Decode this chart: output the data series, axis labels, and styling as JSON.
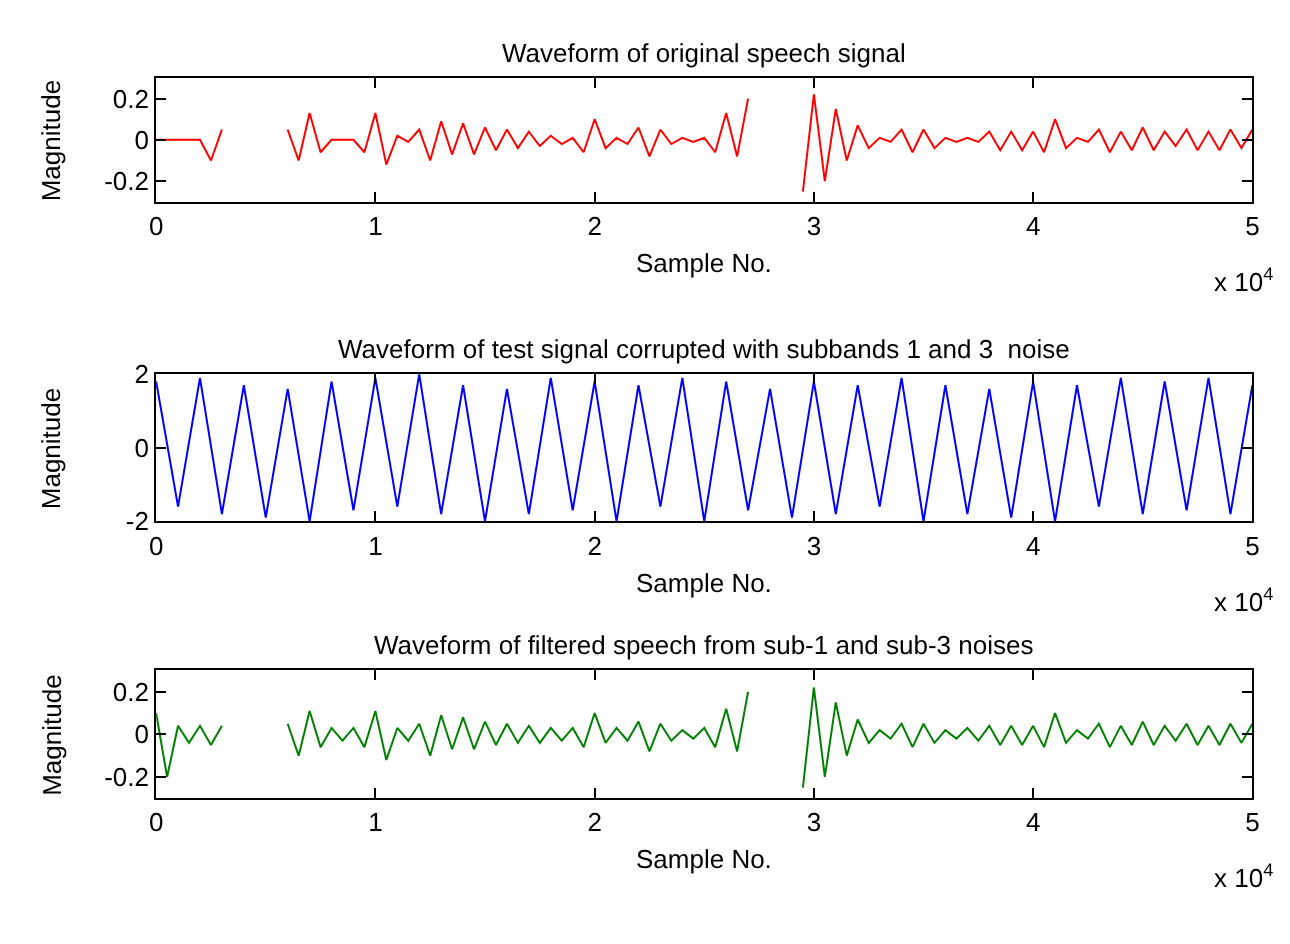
{
  "chart_data": [
    {
      "type": "line",
      "title": "Waveform of original speech signal",
      "xlabel": "Sample No.",
      "ylabel": "Magnitude",
      "annotations": [
        "x 10$^{4}$"
      ],
      "x": [
        0,
        0.05,
        0.1,
        0.15,
        0.2,
        0.25,
        0.3,
        0.35,
        0.4,
        0.45,
        0.5,
        0.55,
        0.6,
        0.65,
        0.7,
        0.75,
        0.8,
        0.85,
        0.9,
        0.95,
        1,
        1.05,
        1.1,
        1.15,
        1.2,
        1.25,
        1.3,
        1.35,
        1.4,
        1.45,
        1.5,
        1.55,
        1.6,
        1.65,
        1.7,
        1.75,
        1.8,
        1.85,
        1.9,
        1.95,
        2,
        2.05,
        2.1,
        2.15,
        2.2,
        2.25,
        2.3,
        2.35,
        2.4,
        2.45,
        2.5,
        2.55,
        2.6,
        2.65,
        2.7,
        2.75,
        2.8,
        2.85,
        2.9,
        2.95,
        3,
        3.05,
        3.1,
        3.15,
        3.2,
        3.25,
        3.3,
        3.35,
        3.4,
        3.45,
        3.5,
        3.55,
        3.6,
        3.65,
        3.7,
        3.75,
        3.8,
        3.85,
        3.9,
        3.95,
        4,
        4.05,
        4.1,
        4.15,
        4.2,
        4.25,
        4.3,
        4.35,
        4.4,
        4.45,
        4.5,
        4.55,
        4.6,
        4.65,
        4.7,
        4.75,
        4.8,
        4.85,
        4.9,
        4.95,
        5
      ],
      "series": [
        {
          "color": "#ff0000",
          "values": [
            0,
            0,
            0,
            0,
            0,
            -0.1,
            0.05,
            null,
            null,
            null,
            null,
            null,
            0.05,
            -0.1,
            0.13,
            -0.06,
            0,
            0,
            0,
            -0.06,
            0.13,
            -0.12,
            0.02,
            -0.01,
            0.05,
            -0.1,
            0.09,
            -0.07,
            0.08,
            -0.07,
            0.06,
            -0.05,
            0.05,
            -0.04,
            0.04,
            -0.03,
            0.02,
            -0.02,
            0.01,
            -0.06,
            0.1,
            -0.04,
            0.01,
            -0.02,
            0.06,
            -0.08,
            0.05,
            -0.02,
            0.01,
            -0.01,
            0.01,
            -0.06,
            0.13,
            -0.08,
            0.2,
            null,
            null,
            null,
            null,
            -0.25,
            0.22,
            -0.2,
            0.15,
            -0.1,
            0.07,
            -0.04,
            0.01,
            -0.01,
            0.05,
            -0.06,
            0.05,
            -0.04,
            0.01,
            -0.01,
            0.01,
            -0.01,
            0.04,
            -0.05,
            0.04,
            -0.05,
            0.04,
            -0.06,
            0.1,
            -0.04,
            0.01,
            -0.01,
            0.05,
            -0.06,
            0.04,
            -0.05,
            0.06,
            -0.05,
            0.04,
            -0.03,
            0.05,
            -0.05,
            0.04,
            -0.05,
            0.05,
            -0.04,
            0.05
          ]
        }
      ],
      "xlim": [
        0,
        5
      ],
      "xticks": [
        0,
        1,
        2,
        3,
        4,
        5
      ],
      "ylim": [
        -0.3,
        0.3
      ],
      "yticks": [
        -0.2,
        0,
        0.2
      ]
    },
    {
      "type": "line",
      "title": "Waveform of test signal corrupted with subbands 1 and 3  noise",
      "xlabel": "Sample No.",
      "ylabel": "Magnitude",
      "annotations": [
        "x 10$^{4}$"
      ],
      "x": [
        0,
        0.1,
        0.2,
        0.3,
        0.4,
        0.5,
        0.6,
        0.7,
        0.8,
        0.9,
        1,
        1.1,
        1.2,
        1.3,
        1.4,
        1.5,
        1.6,
        1.7,
        1.8,
        1.9,
        2,
        2.1,
        2.2,
        2.3,
        2.4,
        2.5,
        2.6,
        2.7,
        2.8,
        2.9,
        3,
        3.1,
        3.2,
        3.3,
        3.4,
        3.5,
        3.6,
        3.7,
        3.8,
        3.9,
        4,
        4.1,
        4.2,
        4.3,
        4.4,
        4.5,
        4.6,
        4.7,
        4.8,
        4.9,
        5
      ],
      "series": [
        {
          "color": "#0000ff",
          "values": [
            1.8,
            -1.6,
            1.9,
            -1.8,
            1.7,
            -1.9,
            1.6,
            -2,
            1.8,
            -1.7,
            1.9,
            -1.6,
            2,
            -1.8,
            1.7,
            -2,
            1.6,
            -1.8,
            1.9,
            -1.7,
            1.8,
            -2,
            1.7,
            -1.6,
            1.9,
            -2,
            1.8,
            -1.7,
            1.6,
            -1.9,
            1.8,
            -1.8,
            1.7,
            -1.6,
            1.9,
            -2,
            1.7,
            -1.8,
            1.6,
            -1.9,
            1.8,
            -2,
            1.7,
            -1.6,
            1.9,
            -1.8,
            1.8,
            -1.7,
            1.9,
            -1.8,
            1.7
          ]
        }
      ],
      "xlim": [
        0,
        5
      ],
      "xticks": [
        0,
        1,
        2,
        3,
        4,
        5
      ],
      "ylim": [
        -2,
        2
      ],
      "yticks": [
        -2,
        0,
        2
      ]
    },
    {
      "type": "line",
      "title": "Waveform of filtered speech from sub-1 and sub-3 noises",
      "xlabel": "Sample No.",
      "ylabel": "Magnitude",
      "annotations": [
        "x 10$^{4}$"
      ],
      "x": [
        0,
        0.05,
        0.1,
        0.15,
        0.2,
        0.25,
        0.3,
        0.35,
        0.4,
        0.45,
        0.5,
        0.55,
        0.6,
        0.65,
        0.7,
        0.75,
        0.8,
        0.85,
        0.9,
        0.95,
        1,
        1.05,
        1.1,
        1.15,
        1.2,
        1.25,
        1.3,
        1.35,
        1.4,
        1.45,
        1.5,
        1.55,
        1.6,
        1.65,
        1.7,
        1.75,
        1.8,
        1.85,
        1.9,
        1.95,
        2,
        2.05,
        2.1,
        2.15,
        2.2,
        2.25,
        2.3,
        2.35,
        2.4,
        2.45,
        2.5,
        2.55,
        2.6,
        2.65,
        2.7,
        2.75,
        2.8,
        2.85,
        2.9,
        2.95,
        3,
        3.05,
        3.1,
        3.15,
        3.2,
        3.25,
        3.3,
        3.35,
        3.4,
        3.45,
        3.5,
        3.55,
        3.6,
        3.65,
        3.7,
        3.75,
        3.8,
        3.85,
        3.9,
        3.95,
        4,
        4.05,
        4.1,
        4.15,
        4.2,
        4.25,
        4.3,
        4.35,
        4.4,
        4.45,
        4.5,
        4.55,
        4.6,
        4.65,
        4.7,
        4.75,
        4.8,
        4.85,
        4.9,
        4.95,
        5
      ],
      "series": [
        {
          "color": "#008000",
          "values": [
            0.1,
            -0.2,
            0.04,
            -0.04,
            0.04,
            -0.05,
            0.04,
            null,
            null,
            null,
            null,
            null,
            0.05,
            -0.1,
            0.11,
            -0.06,
            0.03,
            -0.03,
            0.03,
            -0.06,
            0.11,
            -0.12,
            0.03,
            -0.03,
            0.05,
            -0.1,
            0.09,
            -0.07,
            0.08,
            -0.07,
            0.06,
            -0.05,
            0.05,
            -0.04,
            0.04,
            -0.04,
            0.03,
            -0.03,
            0.03,
            -0.06,
            0.1,
            -0.04,
            0.03,
            -0.03,
            0.06,
            -0.08,
            0.05,
            -0.03,
            0.02,
            -0.02,
            0.03,
            -0.06,
            0.12,
            -0.08,
            0.2,
            null,
            null,
            null,
            null,
            -0.25,
            0.22,
            -0.2,
            0.15,
            -0.1,
            0.07,
            -0.04,
            0.02,
            -0.02,
            0.05,
            -0.06,
            0.05,
            -0.04,
            0.02,
            -0.02,
            0.03,
            -0.03,
            0.04,
            -0.05,
            0.04,
            -0.05,
            0.04,
            -0.06,
            0.1,
            -0.04,
            0.02,
            -0.02,
            0.05,
            -0.06,
            0.04,
            -0.05,
            0.06,
            -0.05,
            0.04,
            -0.03,
            0.05,
            -0.05,
            0.04,
            -0.05,
            0.05,
            -0.04,
            0.05
          ]
        }
      ],
      "xlim": [
        0,
        5
      ],
      "xticks": [
        0,
        1,
        2,
        3,
        4,
        5
      ],
      "ylim": [
        -0.3,
        0.3
      ],
      "yticks": [
        -0.2,
        0,
        0.2
      ]
    }
  ]
}
